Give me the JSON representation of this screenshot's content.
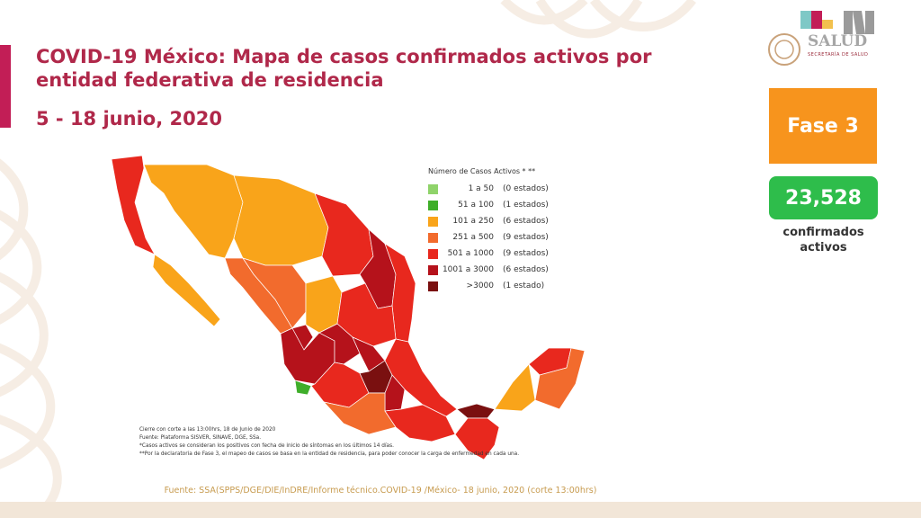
{
  "header": {
    "title": "COVID-19 México: Mapa de casos confirmados activos por entidad federativa de residencia",
    "date_range": "5 - 18 junio, 2020"
  },
  "logo": {
    "wordmark": "SALUD",
    "subtitle": "SECRETARÍA DE SALUD"
  },
  "phase": {
    "label": "Fase 3",
    "color": "#f7941d"
  },
  "summary": {
    "count": "23,528",
    "label_line1": "confirmados",
    "label_line2": "activos",
    "color": "#2ebd4b"
  },
  "legend": {
    "title": "Número de Casos Activos * **",
    "items": [
      {
        "label": "1 a 50",
        "count": "(0 estados)",
        "color": "#8fd36a"
      },
      {
        "label": "51 a 100",
        "count": "(1 estados)",
        "color": "#3fae2a"
      },
      {
        "label": "101 a 250",
        "count": "(6 estados)",
        "color": "#f9a41a"
      },
      {
        "label": "251 a 500",
        "count": "(9 estados)",
        "color": "#f26b2d"
      },
      {
        "label": "501 a 1000",
        "count": "(9 estados)",
        "color": "#e8281e"
      },
      {
        "label": "1001 a 3000",
        "count": "(6 estados)",
        "color": "#b5121b"
      },
      {
        "label": ">3000",
        "count": "(1 estado)",
        "color": "#7a1010"
      }
    ]
  },
  "notes": [
    "Cierre con corte a las 13:00hrs, 18 de Junio de 2020",
    "Fuente: Plataforma SISVER, SINAVE, DGE, SSa.",
    "*Casos activos se consideran los positivos con fecha de inicio de síntomas en los últimos 14 días.",
    "**Por la declaratoria de Fase 3, el mapeo de casos se basa en la entidad de residencia, para poder conocer la carga de enfermedad en cada una."
  ],
  "source": "Fuente: SSA(SPPS/DGE/DIE/InDRE/Informe técnico.COVID-19 /México- 18 junio, 2020 (corte 13:00hrs)"
}
